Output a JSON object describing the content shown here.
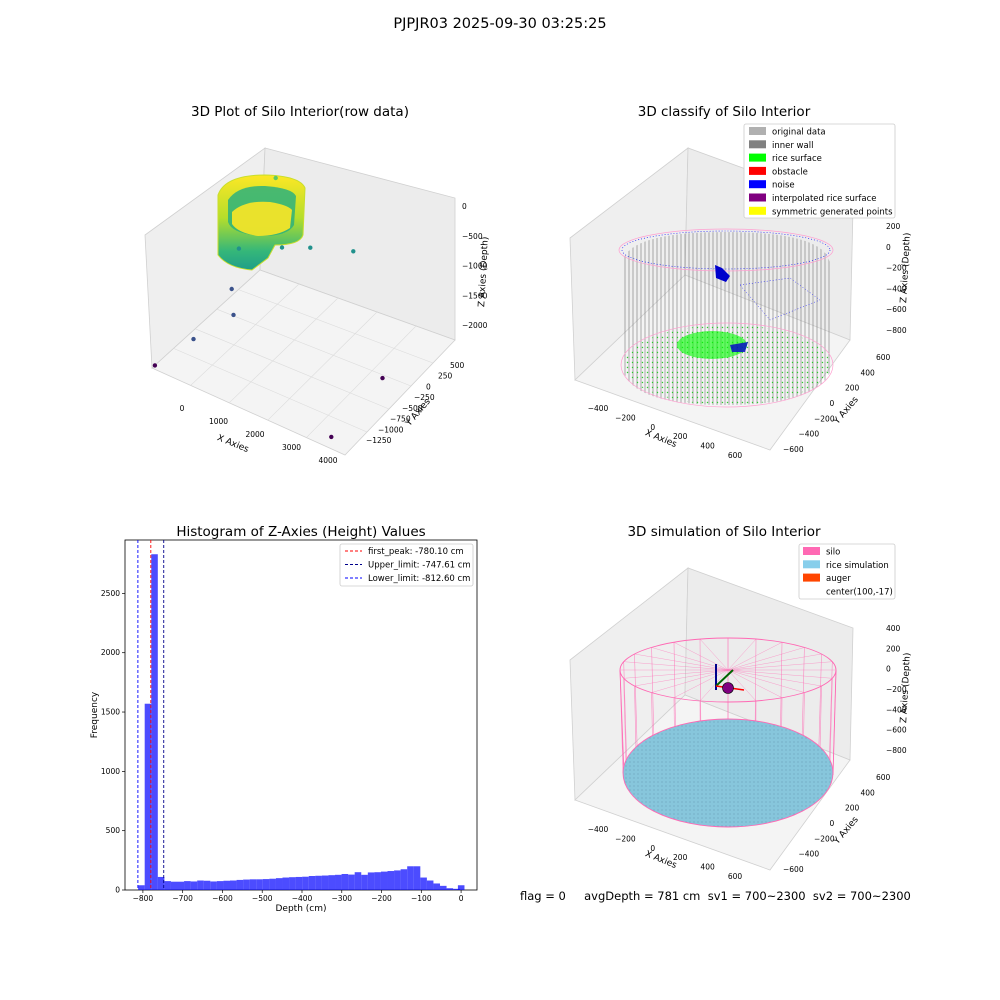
{
  "suptitle": "PJPJR03 2025-09-30 03:25:25",
  "footer": "flag = 0     avgDepth = 781 cm  sv1 = 700~2300  sv2 = 700~2300",
  "chart_data": [
    {
      "type": "scatter",
      "title": "3D Plot of Silo Interior(row data)",
      "xlabel": "X Axies",
      "ylabel": "Y Axies",
      "zlabel": "Z Axies (Depth)",
      "xticks": [
        "0",
        "1000",
        "2000",
        "3000",
        "4000"
      ],
      "yticks": [
        "500",
        "250",
        "0",
        "−250",
        "−500",
        "−750",
        "−1000",
        "−1250"
      ],
      "zticks": [
        "0",
        "−500",
        "−1000",
        "−1500",
        "−2000"
      ],
      "colormap": "viridis",
      "outliers": [
        {
          "x": 700,
          "y": 100,
          "z": -500
        },
        {
          "x": 400,
          "y": -300,
          "z": -1100
        },
        {
          "x": 1100,
          "y": -100,
          "z": -1050
        },
        {
          "x": 1600,
          "y": 0,
          "z": -1000
        },
        {
          "x": 2300,
          "y": 200,
          "z": -1000
        },
        {
          "x": 500,
          "y": -500,
          "z": -1400
        },
        {
          "x": 800,
          "y": -700,
          "z": -1500
        },
        {
          "x": 300,
          "y": -1000,
          "z": -1700
        },
        {
          "x": -300,
          "y": -1200,
          "z": -2000
        },
        {
          "x": 3600,
          "y": -300,
          "z": -1800
        },
        {
          "x": 3500,
          "y": -1100,
          "z": -2000
        }
      ]
    },
    {
      "type": "scatter",
      "title": "3D classify of Silo Interior",
      "xlabel": "X Axies",
      "ylabel": "Y Axies",
      "zlabel": "Z Axies (Depth)",
      "xticks": [
        "−400",
        "−200",
        "0",
        "200",
        "400",
        "600"
      ],
      "yticks": [
        "600",
        "400",
        "200",
        "0",
        "−200",
        "−400",
        "−600"
      ],
      "zticks": [
        "200",
        "0",
        "−200",
        "−400",
        "−600",
        "−800"
      ],
      "legend_position": "upper-right",
      "legend": [
        {
          "label": "original data",
          "color": "#b0b0b0"
        },
        {
          "label": "inner wall",
          "color": "#808080"
        },
        {
          "label": "rice surface",
          "color": "#00ff00"
        },
        {
          "label": "obstacle",
          "color": "#ff0000"
        },
        {
          "label": "noise",
          "color": "#0000ff"
        },
        {
          "label": "interpolated rice surface",
          "color": "#800080"
        },
        {
          "label": "symmetric generated points",
          "color": "#ffff00"
        }
      ]
    },
    {
      "type": "bar",
      "title": "Histogram of Z-Axies (Height) Values",
      "xlabel": "Depth (cm)",
      "ylabel": "Frequency",
      "xlim": [
        -845,
        40
      ],
      "ylim": [
        0,
        2950
      ],
      "xticks": [
        -800,
        -700,
        -600,
        -500,
        -400,
        -300,
        -200,
        -100,
        0
      ],
      "yticks": [
        0,
        500,
        1000,
        1500,
        2000,
        2500
      ],
      "bin_width": 16.5,
      "bins": [
        {
          "x0": -812,
          "v": 40
        },
        {
          "x0": -795.5,
          "v": 1570
        },
        {
          "x0": -779,
          "v": 2830
        },
        {
          "x0": -762.5,
          "v": 110
        },
        {
          "x0": -746,
          "v": 75
        },
        {
          "x0": -729.5,
          "v": 70
        },
        {
          "x0": -713,
          "v": 70
        },
        {
          "x0": -696.5,
          "v": 75
        },
        {
          "x0": -680,
          "v": 72
        },
        {
          "x0": -663.5,
          "v": 80
        },
        {
          "x0": -647,
          "v": 78
        },
        {
          "x0": -630.5,
          "v": 72
        },
        {
          "x0": -614,
          "v": 75
        },
        {
          "x0": -597.5,
          "v": 78
        },
        {
          "x0": -581,
          "v": 80
        },
        {
          "x0": -564.5,
          "v": 85
        },
        {
          "x0": -548,
          "v": 88
        },
        {
          "x0": -531.5,
          "v": 90
        },
        {
          "x0": -515,
          "v": 90
        },
        {
          "x0": -498.5,
          "v": 92
        },
        {
          "x0": -482,
          "v": 95
        },
        {
          "x0": -465.5,
          "v": 100
        },
        {
          "x0": -449,
          "v": 105
        },
        {
          "x0": -432.5,
          "v": 108
        },
        {
          "x0": -416,
          "v": 110
        },
        {
          "x0": -399.5,
          "v": 112
        },
        {
          "x0": -383,
          "v": 118
        },
        {
          "x0": -366.5,
          "v": 120
        },
        {
          "x0": -350,
          "v": 122
        },
        {
          "x0": -333.5,
          "v": 125
        },
        {
          "x0": -317,
          "v": 128
        },
        {
          "x0": -300.5,
          "v": 135
        },
        {
          "x0": -284,
          "v": 130
        },
        {
          "x0": -267.5,
          "v": 150
        },
        {
          "x0": -251,
          "v": 128
        },
        {
          "x0": -234.5,
          "v": 148
        },
        {
          "x0": -218,
          "v": 150
        },
        {
          "x0": -201.5,
          "v": 155
        },
        {
          "x0": -185,
          "v": 160
        },
        {
          "x0": -168.5,
          "v": 165
        },
        {
          "x0": -152,
          "v": 175
        },
        {
          "x0": -135.5,
          "v": 200
        },
        {
          "x0": -119,
          "v": 200
        },
        {
          "x0": -102.5,
          "v": 105
        },
        {
          "x0": -86,
          "v": 80
        },
        {
          "x0": -69.5,
          "v": 55
        },
        {
          "x0": -53,
          "v": 35
        },
        {
          "x0": -36.5,
          "v": 15
        },
        {
          "x0": -20,
          "v": 10
        },
        {
          "x0": -8,
          "v": 40
        }
      ],
      "color": "#0000ff",
      "vlines": [
        {
          "label": "first_peak: -780.10 cm",
          "x": -780.1,
          "color": "#ff0000"
        },
        {
          "label": "Upper_limit: -747.61 cm",
          "x": -747.61,
          "color": "#00008b"
        },
        {
          "label": "Lower_limit: -812.60 cm",
          "x": -812.6,
          "color": "#0000ff"
        }
      ],
      "legend_position": "upper-right"
    },
    {
      "type": "scatter",
      "title": "3D simulation of Silo Interior",
      "xlabel": "X Axies",
      "ylabel": "Y Axies",
      "zlabel": "Z Axies (Depth)",
      "xticks": [
        "−400",
        "−200",
        "0",
        "200",
        "400",
        "600"
      ],
      "yticks": [
        "600",
        "400",
        "200",
        "0",
        "−200",
        "−400",
        "−600"
      ],
      "zticks": [
        "400",
        "200",
        "0",
        "−200",
        "−400",
        "−600",
        "−800"
      ],
      "legend_position": "upper-right",
      "legend": [
        {
          "label": "silo",
          "color": "#ff69b4"
        },
        {
          "label": "rice simulation",
          "color": "#87ceeb"
        },
        {
          "label": "auger",
          "color": "#ff4500"
        },
        {
          "label": "center(100,-17)",
          "color": "none"
        }
      ]
    }
  ]
}
